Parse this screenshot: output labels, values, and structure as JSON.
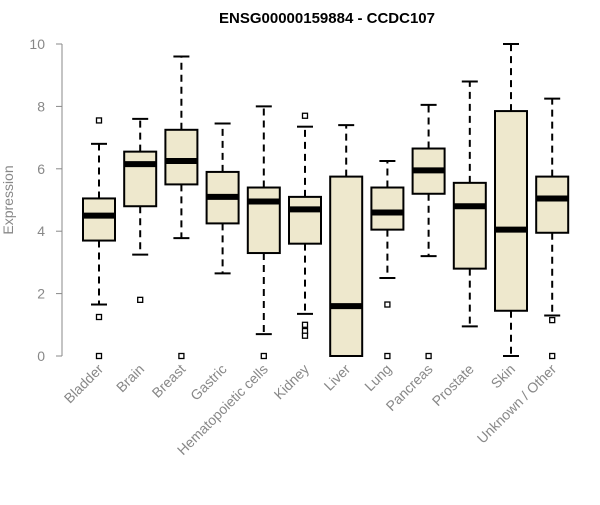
{
  "chart_data": {
    "type": "boxplot",
    "title": "ENSG00000159884 - CCDC107",
    "xlabel": "",
    "ylabel": "Expression",
    "ylim": [
      0,
      10
    ],
    "yticks": [
      0,
      2,
      4,
      6,
      8,
      10
    ],
    "colors": {
      "box_fill": "#EEE8CD",
      "stroke": "#000000",
      "axis": "#888888"
    },
    "categories": [
      "Bladder",
      "Brain",
      "Breast",
      "Gastric",
      "Hematopoietic cells",
      "Kidney",
      "Liver",
      "Lung",
      "Pancreas",
      "Prostate",
      "Skin",
      "Unknown / Other"
    ],
    "boxes": [
      {
        "category": "Bladder",
        "whisker_low": 1.65,
        "q1": 3.7,
        "median": 4.5,
        "q3": 5.05,
        "whisker_high": 6.8,
        "outliers": [
          7.55,
          1.25,
          0
        ]
      },
      {
        "category": "Brain",
        "whisker_low": 3.25,
        "q1": 4.8,
        "median": 6.15,
        "q3": 6.55,
        "whisker_high": 7.6,
        "outliers": [
          1.8
        ]
      },
      {
        "category": "Breast",
        "whisker_low": 3.78,
        "q1": 5.5,
        "median": 6.25,
        "q3": 7.25,
        "whisker_high": 9.6,
        "outliers": [
          0
        ]
      },
      {
        "category": "Gastric",
        "whisker_low": 2.65,
        "q1": 4.25,
        "median": 5.1,
        "q3": 5.9,
        "whisker_high": 7.45,
        "outliers": []
      },
      {
        "category": "Hematopoietic cells",
        "whisker_low": 0.7,
        "q1": 3.3,
        "median": 4.95,
        "q3": 5.4,
        "whisker_high": 8.0,
        "outliers": [
          0
        ]
      },
      {
        "category": "Kidney",
        "whisker_low": 1.35,
        "q1": 3.6,
        "median": 4.7,
        "q3": 5.1,
        "whisker_high": 7.35,
        "outliers": [
          7.7,
          1.0,
          0.8,
          0.65
        ]
      },
      {
        "category": "Liver",
        "whisker_low": 0,
        "q1": 0,
        "median": 1.6,
        "q3": 5.75,
        "whisker_high": 7.4,
        "outliers": []
      },
      {
        "category": "Lung",
        "whisker_low": 2.5,
        "q1": 4.05,
        "median": 4.6,
        "q3": 5.4,
        "whisker_high": 6.25,
        "outliers": [
          1.65,
          0
        ]
      },
      {
        "category": "Pancreas",
        "whisker_low": 3.2,
        "q1": 5.2,
        "median": 5.95,
        "q3": 6.65,
        "whisker_high": 8.05,
        "outliers": [
          0
        ]
      },
      {
        "category": "Prostate",
        "whisker_low": 0.95,
        "q1": 2.8,
        "median": 4.8,
        "q3": 5.55,
        "whisker_high": 8.8,
        "outliers": []
      },
      {
        "category": "Skin",
        "whisker_low": 0,
        "q1": 1.45,
        "median": 4.05,
        "q3": 7.85,
        "whisker_high": 10.0,
        "outliers": []
      },
      {
        "category": "Unknown / Other",
        "whisker_low": 1.3,
        "q1": 3.95,
        "median": 5.05,
        "q3": 5.75,
        "whisker_high": 8.25,
        "outliers": [
          1.15,
          0
        ]
      }
    ]
  }
}
